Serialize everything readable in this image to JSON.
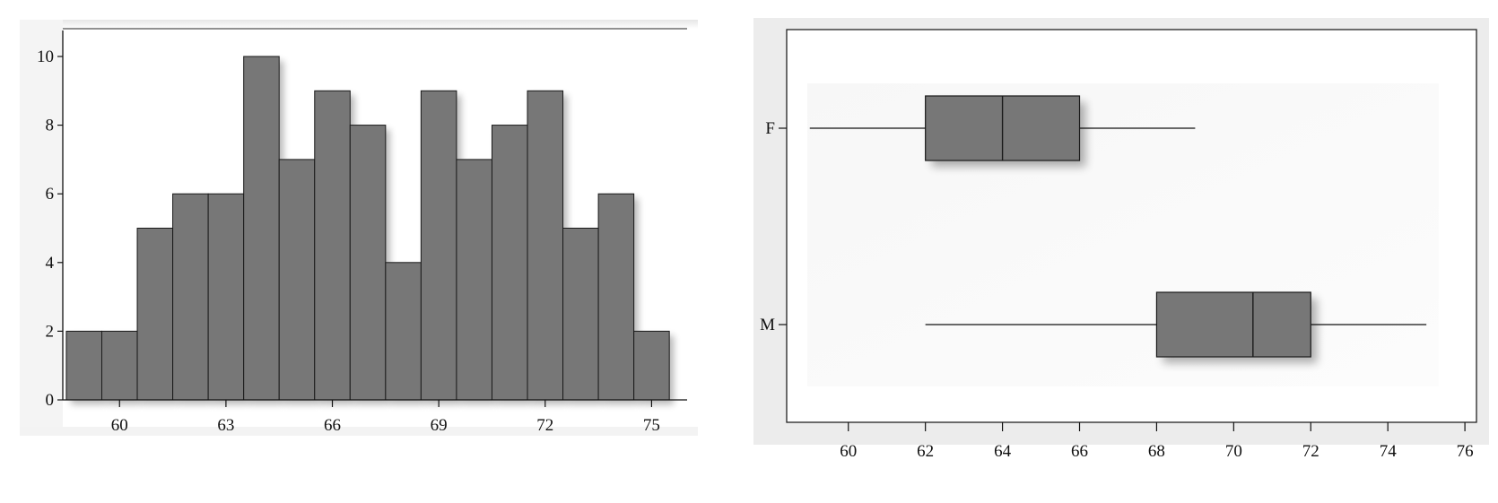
{
  "chart_data": [
    {
      "type": "bar",
      "subtype": "histogram",
      "title": "",
      "xlabel": "",
      "ylabel": "",
      "bin_width": 1,
      "bins": [
        {
          "x": 59,
          "count": 2
        },
        {
          "x": 60,
          "count": 2
        },
        {
          "x": 61,
          "count": 5
        },
        {
          "x": 62,
          "count": 6
        },
        {
          "x": 63,
          "count": 6
        },
        {
          "x": 64,
          "count": 10
        },
        {
          "x": 65,
          "count": 7
        },
        {
          "x": 66,
          "count": 9
        },
        {
          "x": 67,
          "count": 8
        },
        {
          "x": 68,
          "count": 4
        },
        {
          "x": 69,
          "count": 9
        },
        {
          "x": 70,
          "count": 7
        },
        {
          "x": 71,
          "count": 8
        },
        {
          "x": 72,
          "count": 9
        },
        {
          "x": 73,
          "count": 5
        },
        {
          "x": 74,
          "count": 6
        },
        {
          "x": 75,
          "count": 2
        }
      ],
      "xlim": [
        58.4,
        75.9
      ],
      "ylim": [
        0,
        10.6
      ],
      "xticks": [
        "60",
        "63",
        "66",
        "69",
        "72",
        "75"
      ],
      "yticks": [
        "0",
        "2",
        "4",
        "6",
        "8",
        "10"
      ],
      "grid": false,
      "bar_color": "#777777"
    },
    {
      "type": "boxplot",
      "orientation": "horizontal",
      "title": "",
      "xlabel": "",
      "ylabel": "",
      "groups": [
        {
          "label": "F",
          "min": 59,
          "q1": 62,
          "median": 64,
          "q3": 66,
          "max": 69
        },
        {
          "label": "M",
          "min": 62,
          "q1": 68,
          "median": 70.5,
          "q3": 72,
          "max": 75
        }
      ],
      "xlim": [
        58.4,
        76.3
      ],
      "xticks": [
        "60",
        "62",
        "64",
        "66",
        "68",
        "70",
        "72",
        "74",
        "76"
      ],
      "grid": false,
      "box_color": "#777777"
    }
  ]
}
